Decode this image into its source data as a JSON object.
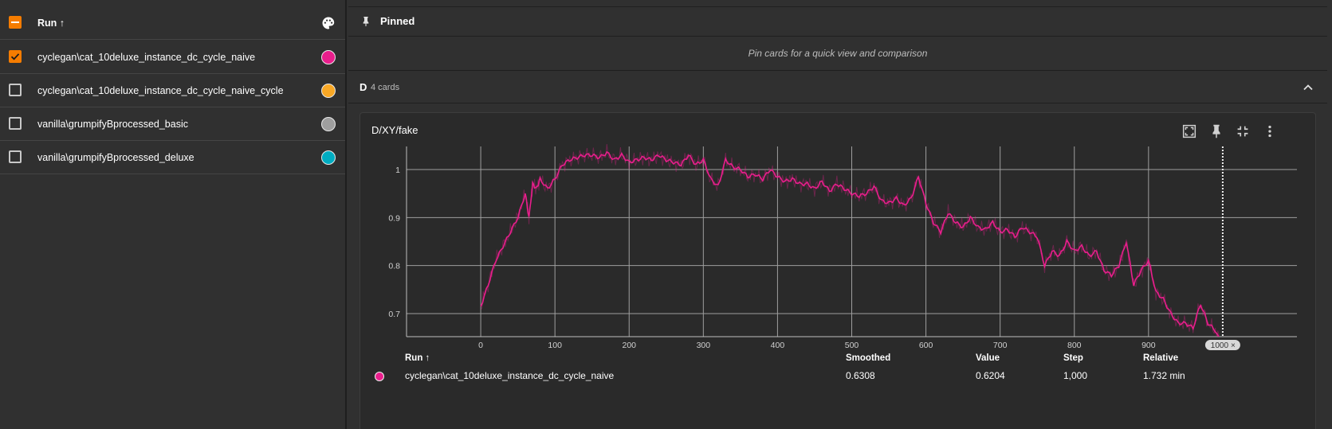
{
  "runs_panel": {
    "header_label": "Run ↑",
    "palette_icon": "palette-icon",
    "runs": [
      {
        "name": "cyclegan\\cat_10deluxe_instance_dc_cycle_naive",
        "checked": true,
        "color": "#e91e8c"
      },
      {
        "name": "cyclegan\\cat_10deluxe_instance_dc_cycle_naive_cycle",
        "checked": false,
        "color": "#f9a825"
      },
      {
        "name": "vanilla\\grumpifyBprocessed_basic",
        "checked": false,
        "color": "#9e9e9e"
      },
      {
        "name": "vanilla\\grumpifyBprocessed_deluxe",
        "checked": false,
        "color": "#00acc1"
      }
    ]
  },
  "pinned": {
    "title": "Pinned",
    "empty_message": "Pin cards for a quick view and comparison"
  },
  "group": {
    "name": "D",
    "count": "4 cards"
  },
  "card": {
    "title": "D/XY/fake",
    "tools": [
      "fullscreen-icon",
      "pin-icon",
      "collapse-icon",
      "more-vert-icon"
    ],
    "step_badge": "1000",
    "legend": {
      "headers": {
        "run": "Run ↑",
        "smoothed": "Smoothed",
        "value": "Value",
        "step": "Step",
        "relative": "Relative"
      },
      "row": {
        "run": "cyclegan\\cat_10deluxe_instance_dc_cycle_naive",
        "smoothed": "0.6308",
        "value": "0.6204",
        "step": "1,000",
        "relative": "1.732 min",
        "color": "#e91e8c"
      }
    }
  },
  "chart_data": {
    "type": "line",
    "title": "D/XY/fake",
    "xlabel": "",
    "ylabel": "",
    "xlim": [
      -100,
      1100
    ],
    "ylim": [
      0.652,
      1.048
    ],
    "x_ticks": [
      0,
      100,
      200,
      300,
      400,
      500,
      600,
      700,
      800,
      900
    ],
    "y_ticks": [
      0.7,
      0.8,
      0.9,
      1
    ],
    "grid": true,
    "cursor_x": 1000,
    "series": [
      {
        "name": "cyclegan\\cat_10deluxe_instance_dc_cycle_naive",
        "color": "#e91e8c",
        "x": [
          0,
          10,
          20,
          30,
          40,
          50,
          60,
          65,
          70,
          75,
          80,
          90,
          100,
          110,
          120,
          130,
          140,
          150,
          160,
          170,
          180,
          190,
          200,
          210,
          220,
          230,
          240,
          250,
          260,
          270,
          280,
          290,
          300,
          310,
          320,
          330,
          340,
          350,
          360,
          370,
          380,
          390,
          400,
          410,
          420,
          430,
          440,
          450,
          460,
          470,
          480,
          490,
          500,
          510,
          520,
          530,
          540,
          550,
          560,
          570,
          580,
          590,
          600,
          610,
          620,
          630,
          640,
          650,
          660,
          670,
          680,
          690,
          700,
          710,
          720,
          730,
          740,
          750,
          760,
          770,
          780,
          790,
          800,
          810,
          820,
          830,
          840,
          850,
          860,
          870,
          880,
          890,
          900,
          910,
          920,
          930,
          940,
          950,
          960,
          970,
          980,
          990,
          1000
        ],
        "y": [
          0.715,
          0.76,
          0.81,
          0.84,
          0.87,
          0.9,
          0.95,
          0.9,
          0.97,
          0.96,
          0.98,
          0.96,
          0.98,
          1.01,
          1.02,
          1.025,
          1.03,
          1.03,
          1.025,
          1.035,
          1.02,
          1.03,
          1.015,
          1.02,
          1.025,
          1.02,
          1.03,
          1.02,
          1.015,
          1.01,
          1.03,
          1.01,
          1.02,
          0.98,
          0.965,
          1.02,
          1.005,
          1.0,
          0.985,
          0.99,
          0.98,
          1.0,
          0.985,
          0.975,
          0.98,
          0.97,
          0.97,
          0.96,
          0.975,
          0.955,
          0.97,
          0.96,
          0.95,
          0.945,
          0.95,
          0.965,
          0.935,
          0.93,
          0.94,
          0.925,
          0.94,
          0.985,
          0.93,
          0.89,
          0.87,
          0.91,
          0.89,
          0.88,
          0.9,
          0.88,
          0.875,
          0.89,
          0.87,
          0.875,
          0.86,
          0.88,
          0.87,
          0.86,
          0.8,
          0.83,
          0.82,
          0.85,
          0.83,
          0.84,
          0.82,
          0.83,
          0.79,
          0.78,
          0.8,
          0.85,
          0.76,
          0.79,
          0.81,
          0.745,
          0.73,
          0.7,
          0.68,
          0.68,
          0.67,
          0.72,
          0.68,
          0.665,
          0.63
        ]
      }
    ]
  }
}
